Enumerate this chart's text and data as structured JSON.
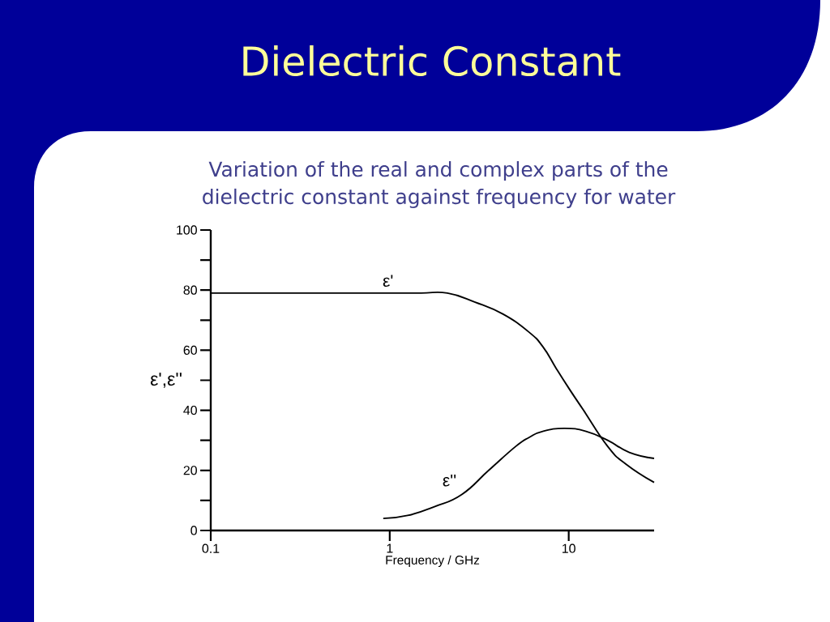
{
  "chart_data": {
    "type": "line",
    "title": "Dielectric Constant",
    "subtitle": "Variation of the real and complex parts of the dielectric constant against frequency for water",
    "xlabel": "Frequency / GHz",
    "ylabel": "ε',ε''",
    "log": "x",
    "xlim": [
      0.1,
      30
    ],
    "xticks": [
      0.1,
      1,
      10
    ],
    "ylim": [
      0,
      100
    ],
    "yticks": [
      0,
      {
        "value": 10,
        "label": null
      },
      20,
      {
        "value": 30,
        "label": null
      },
      40,
      {
        "value": 50,
        "label": null
      },
      60,
      {
        "value": 70,
        "label": null
      },
      80,
      {
        "value": 90,
        "label": null
      },
      100
    ],
    "series": [
      {
        "name": "ε'",
        "color": "#000000",
        "x": [
          0.1,
          1,
          1.5,
          2.1,
          3,
          4.3,
          6,
          7.2,
          8.5,
          10.1,
          12.1,
          16.5,
          21,
          30
        ],
        "values": [
          79,
          79,
          79,
          79,
          76,
          72,
          66,
          61,
          54,
          47,
          40,
          28,
          22,
          16
        ]
      },
      {
        "name": "ε''",
        "color": "#000000",
        "x": [
          0.92,
          1.26,
          1.79,
          2.53,
          3.57,
          5.06,
          6.02,
          7.16,
          9.46,
          12.5,
          16.5,
          21.8,
          30
        ],
        "values": [
          4,
          5,
          8,
          12,
          20,
          28,
          31,
          33,
          34,
          33,
          30,
          26,
          24
        ]
      }
    ]
  }
}
